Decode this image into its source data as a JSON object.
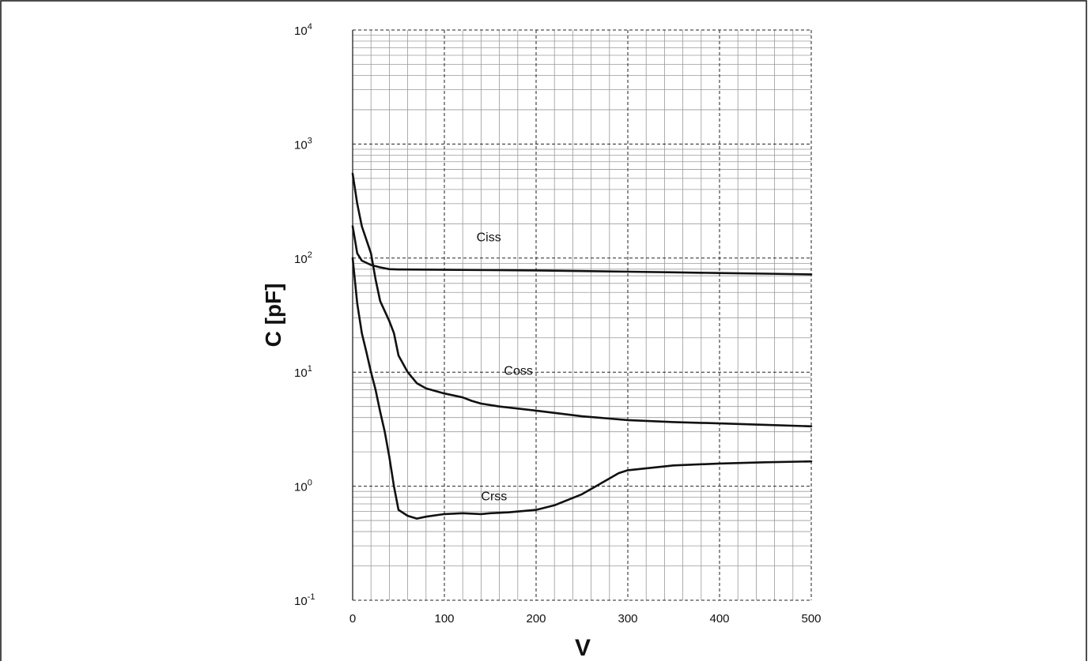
{
  "chart_data": {
    "type": "line",
    "title": "",
    "xlabel": "V",
    "ylabel": "C [pF]",
    "xlim": [
      0,
      500
    ],
    "ylim": [
      0.1,
      10000
    ],
    "y_scale": "log",
    "grid": true,
    "x_ticks": [
      "0",
      "100",
      "200",
      "300",
      "400",
      "500"
    ],
    "y_ticks": [
      {
        "base": "10",
        "exp": "4"
      },
      {
        "base": "10",
        "exp": "3"
      },
      {
        "base": "10",
        "exp": "2"
      },
      {
        "base": "10",
        "exp": "1"
      },
      {
        "base": "10",
        "exp": "0"
      },
      {
        "base": "10",
        "exp": "-1"
      }
    ],
    "series": [
      {
        "name": "Ciss",
        "label_at": [
          135,
          140
        ],
        "points": [
          [
            0,
            190
          ],
          [
            5,
            110
          ],
          [
            10,
            95
          ],
          [
            20,
            87
          ],
          [
            30,
            83
          ],
          [
            40,
            80
          ],
          [
            50,
            79.5
          ],
          [
            100,
            79
          ],
          [
            150,
            78.5
          ],
          [
            200,
            78
          ],
          [
            250,
            77
          ],
          [
            300,
            76
          ],
          [
            350,
            75
          ],
          [
            400,
            74
          ],
          [
            450,
            73
          ],
          [
            500,
            72
          ]
        ]
      },
      {
        "name": "Coss",
        "label_at": [
          165,
          9.5
        ],
        "points": [
          [
            0,
            550
          ],
          [
            5,
            300
          ],
          [
            10,
            190
          ],
          [
            20,
            110
          ],
          [
            25,
            65
          ],
          [
            30,
            42
          ],
          [
            40,
            28
          ],
          [
            45,
            22
          ],
          [
            50,
            14
          ],
          [
            60,
            10
          ],
          [
            70,
            8
          ],
          [
            80,
            7.2
          ],
          [
            100,
            6.5
          ],
          [
            120,
            6
          ],
          [
            130,
            5.6
          ],
          [
            140,
            5.3
          ],
          [
            160,
            5
          ],
          [
            200,
            4.6
          ],
          [
            250,
            4.1
          ],
          [
            300,
            3.8
          ],
          [
            350,
            3.65
          ],
          [
            400,
            3.55
          ],
          [
            450,
            3.45
          ],
          [
            500,
            3.35
          ]
        ]
      },
      {
        "name": "Crss",
        "label_at": [
          140,
          0.75
        ],
        "points": [
          [
            0,
            100
          ],
          [
            5,
            40
          ],
          [
            10,
            22
          ],
          [
            15,
            15
          ],
          [
            20,
            10
          ],
          [
            25,
            7
          ],
          [
            30,
            4.5
          ],
          [
            35,
            3
          ],
          [
            40,
            1.8
          ],
          [
            45,
            1
          ],
          [
            50,
            0.62
          ],
          [
            60,
            0.55
          ],
          [
            70,
            0.52
          ],
          [
            80,
            0.54
          ],
          [
            100,
            0.57
          ],
          [
            120,
            0.58
          ],
          [
            140,
            0.57
          ],
          [
            150,
            0.58
          ],
          [
            170,
            0.59
          ],
          [
            200,
            0.62
          ],
          [
            220,
            0.68
          ],
          [
            250,
            0.85
          ],
          [
            270,
            1.05
          ],
          [
            290,
            1.3
          ],
          [
            300,
            1.38
          ],
          [
            350,
            1.52
          ],
          [
            400,
            1.58
          ],
          [
            450,
            1.62
          ],
          [
            500,
            1.65
          ]
        ]
      }
    ]
  }
}
